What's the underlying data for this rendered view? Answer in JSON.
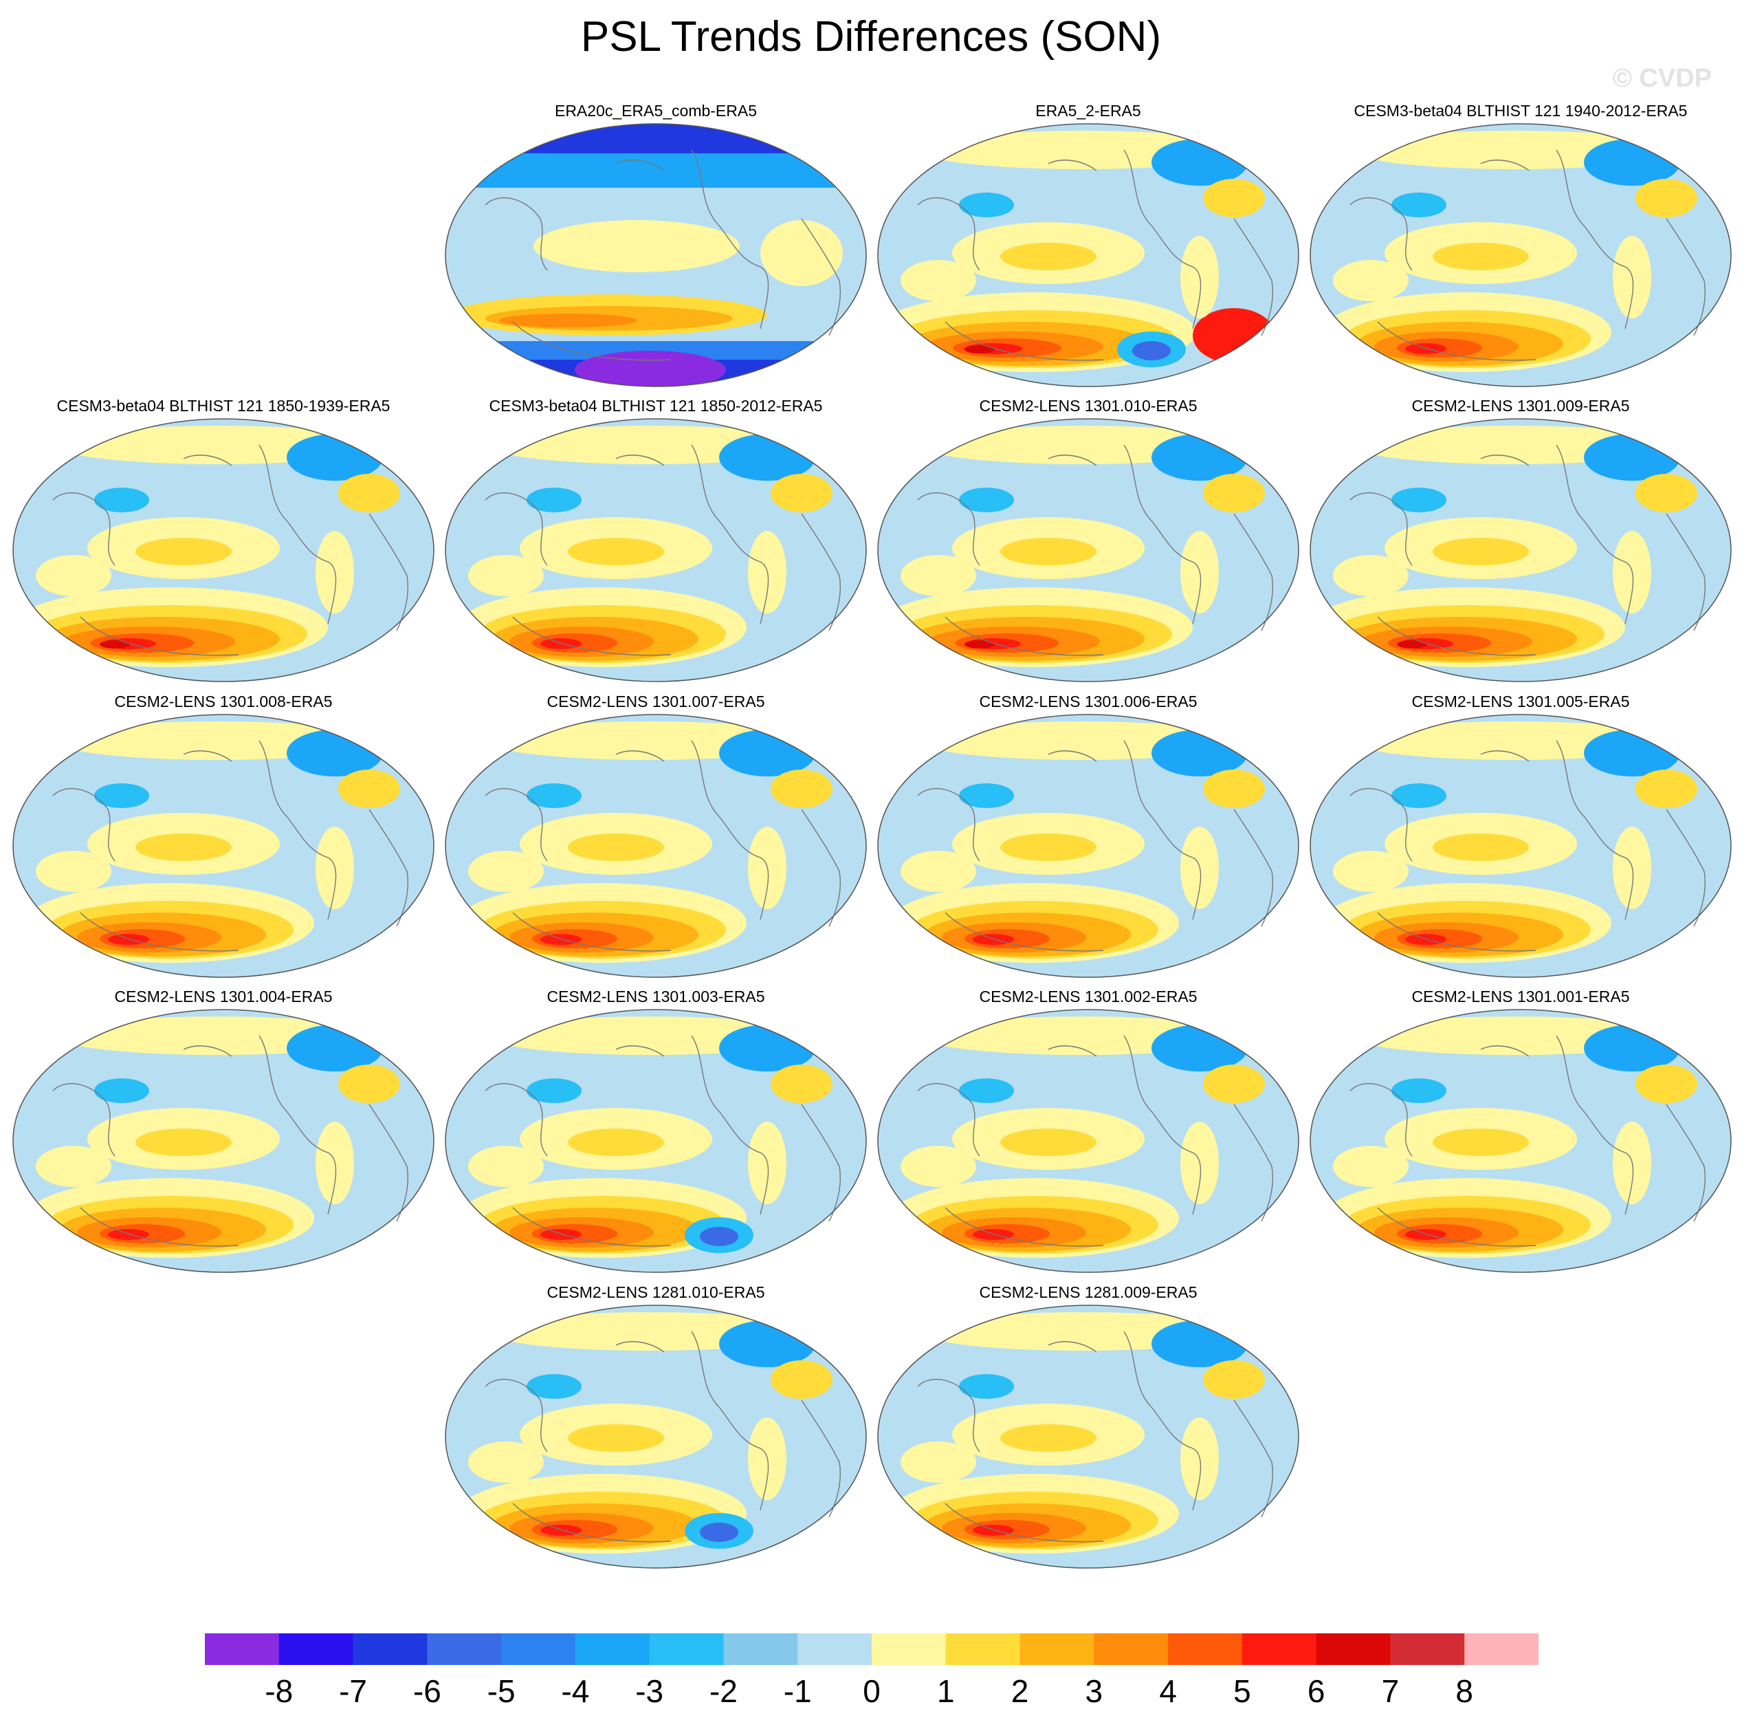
{
  "title": "PSL Trends Differences (SON)",
  "watermark": "© CVDP",
  "panels": [
    {
      "title": "ERA20c_ERA5_comb-ERA5",
      "row": 0,
      "col": 1,
      "style": "era20c"
    },
    {
      "title": "ERA5_2-ERA5",
      "row": 0,
      "col": 2,
      "style": "era5"
    },
    {
      "title": "CESM3-beta04 BLTHIST 121 1940-2012-ERA5",
      "row": 0,
      "col": 3,
      "style": "model"
    },
    {
      "title": "CESM3-beta04 BLTHIST 121 1850-1939-ERA5",
      "row": 1,
      "col": 0,
      "style": "strong"
    },
    {
      "title": "CESM3-beta04 BLTHIST 121 1850-2012-ERA5",
      "row": 1,
      "col": 1,
      "style": "model"
    },
    {
      "title": "CESM2-LENS 1301.010-ERA5",
      "row": 1,
      "col": 2,
      "style": "strong"
    },
    {
      "title": "CESM2-LENS 1301.009-ERA5",
      "row": 1,
      "col": 3,
      "style": "strong"
    },
    {
      "title": "CESM2-LENS 1301.008-ERA5",
      "row": 2,
      "col": 0,
      "style": "model"
    },
    {
      "title": "CESM2-LENS 1301.007-ERA5",
      "row": 2,
      "col": 1,
      "style": "model"
    },
    {
      "title": "CESM2-LENS 1301.006-ERA5",
      "row": 2,
      "col": 2,
      "style": "model"
    },
    {
      "title": "CESM2-LENS 1301.005-ERA5",
      "row": 2,
      "col": 3,
      "style": "model"
    },
    {
      "title": "CESM2-LENS 1301.004-ERA5",
      "row": 3,
      "col": 0,
      "style": "model"
    },
    {
      "title": "CESM2-LENS 1301.003-ERA5",
      "row": 3,
      "col": 1,
      "style": "bluespot"
    },
    {
      "title": "CESM2-LENS 1301.002-ERA5",
      "row": 3,
      "col": 2,
      "style": "model"
    },
    {
      "title": "CESM2-LENS 1301.001-ERA5",
      "row": 3,
      "col": 3,
      "style": "model"
    },
    {
      "title": "CESM2-LENS 1281.010-ERA5",
      "row": 4,
      "col": 1,
      "style": "bluespot"
    },
    {
      "title": "CESM2-LENS 1281.009-ERA5",
      "row": 4,
      "col": 2,
      "style": "model"
    }
  ],
  "colorbar": {
    "colors": [
      "#8a2be2",
      "#2a10f0",
      "#2038e0",
      "#3a6ae6",
      "#2c82f0",
      "#1ca6f8",
      "#28bef6",
      "#84c8ec",
      "#b8def2",
      "#fff8a0",
      "#ffdc3a",
      "#ffb214",
      "#ff8c0a",
      "#ff5a08",
      "#ff1a10",
      "#dc0808",
      "#d42c34",
      "#ffb2b8"
    ],
    "labels": [
      "-8",
      "-7",
      "-6",
      "-5",
      "-4",
      "-3",
      "-2",
      "-1",
      "0",
      "1",
      "2",
      "3",
      "4",
      "5",
      "6",
      "7",
      "8"
    ]
  }
}
